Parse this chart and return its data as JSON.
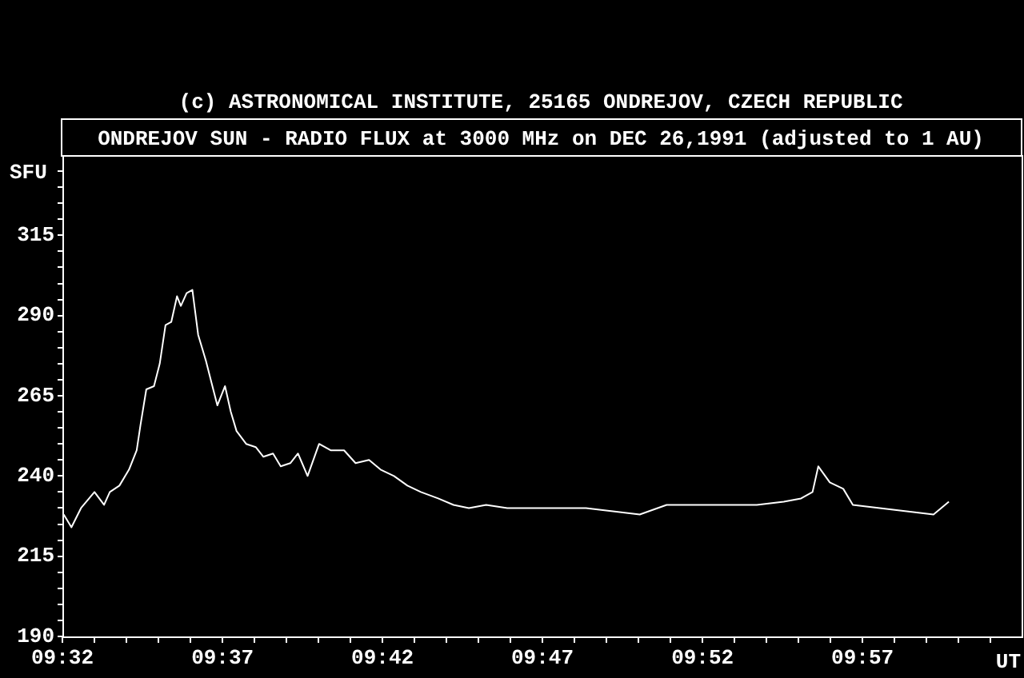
{
  "chart_data": {
    "type": "line",
    "title": "ONDREJOV SUN - RADIO FLUX at 3000 MHz on DEC 26,1991 (adjusted to 1 AU)",
    "subtitle": "(c) ASTRONOMICAL INSTITUTE, 25165 ONDREJOV, CZECH REPUBLIC",
    "xlabel": "UT",
    "ylabel": "SFU",
    "x": [
      9.534,
      9.538,
      9.543,
      9.55,
      9.555,
      9.558,
      9.563,
      9.568,
      9.572,
      9.574,
      9.577,
      9.581,
      9.584,
      9.587,
      9.59,
      9.593,
      9.595,
      9.598,
      9.601,
      9.604,
      9.608,
      9.611,
      9.614,
      9.618,
      9.621,
      9.624,
      9.629,
      9.634,
      9.638,
      9.643,
      9.647,
      9.652,
      9.656,
      9.661,
      9.667,
      9.673,
      9.68,
      9.686,
      9.693,
      9.699,
      9.706,
      9.713,
      9.72,
      9.729,
      9.737,
      9.745,
      9.754,
      9.765,
      9.779,
      9.806,
      9.834,
      9.848,
      9.873,
      9.895,
      9.909,
      9.918,
      9.924,
      9.927,
      9.933,
      9.94,
      9.945,
      9.959,
      9.973,
      9.987,
      9.995
    ],
    "series": [
      {
        "color": "#ffffff",
        "values": [
          228,
          224,
          230,
          235,
          231,
          235,
          237,
          242,
          248,
          256,
          267,
          268,
          275,
          287,
          288,
          296,
          293,
          297,
          298,
          284,
          276,
          269,
          262,
          268,
          260,
          254,
          250,
          249,
          246,
          247,
          243,
          244,
          247,
          240,
          250,
          248,
          248,
          244,
          245,
          242,
          240,
          237,
          235,
          233,
          231,
          230,
          231,
          230,
          230,
          230,
          228,
          231,
          231,
          231,
          232,
          233,
          235,
          243,
          238,
          236,
          231,
          230,
          229,
          228,
          232
        ]
      }
    ],
    "xlim": [
      9.5333,
      10.0333
    ],
    "ylim": [
      190,
      340
    ],
    "xticks": [
      {
        "value": 9.5333,
        "label": "09:32"
      },
      {
        "value": 9.55,
        "label": null
      },
      {
        "value": 9.5667,
        "label": null
      },
      {
        "value": 9.5833,
        "label": null
      },
      {
        "value": 9.6,
        "label": null
      },
      {
        "value": 9.6167,
        "label": "09:37"
      },
      {
        "value": 9.6333,
        "label": null
      },
      {
        "value": 9.65,
        "label": null
      },
      {
        "value": 9.6667,
        "label": null
      },
      {
        "value": 9.6833,
        "label": null
      },
      {
        "value": 9.7,
        "label": "09:42"
      },
      {
        "value": 9.7167,
        "label": null
      },
      {
        "value": 9.7333,
        "label": null
      },
      {
        "value": 9.75,
        "label": null
      },
      {
        "value": 9.7667,
        "label": null
      },
      {
        "value": 9.7833,
        "label": "09:47"
      },
      {
        "value": 9.8,
        "label": null
      },
      {
        "value": 9.8167,
        "label": null
      },
      {
        "value": 9.8333,
        "label": null
      },
      {
        "value": 9.85,
        "label": null
      },
      {
        "value": 9.8667,
        "label": "09:52"
      },
      {
        "value": 9.8833,
        "label": null
      },
      {
        "value": 9.9,
        "label": null
      },
      {
        "value": 9.9167,
        "label": null
      },
      {
        "value": 9.9333,
        "label": null
      },
      {
        "value": 9.95,
        "label": "09:57"
      },
      {
        "value": 9.9667,
        "label": null
      },
      {
        "value": 9.9833,
        "label": null
      },
      {
        "value": 10.0,
        "label": null
      },
      {
        "value": 10.0167,
        "label": null
      }
    ],
    "yticks": [
      190,
      {
        "value": 195,
        "label": null
      },
      {
        "value": 200,
        "label": null
      },
      {
        "value": 205,
        "label": null
      },
      {
        "value": 210,
        "label": null
      },
      215,
      {
        "value": 220,
        "label": null
      },
      {
        "value": 225,
        "label": null
      },
      {
        "value": 230,
        "label": null
      },
      {
        "value": 235,
        "label": null
      },
      240,
      {
        "value": 245,
        "label": null
      },
      {
        "value": 250,
        "label": null
      },
      {
        "value": 255,
        "label": null
      },
      {
        "value": 260,
        "label": null
      },
      265,
      {
        "value": 270,
        "label": null
      },
      {
        "value": 275,
        "label": null
      },
      {
        "value": 280,
        "label": null
      },
      {
        "value": 285,
        "label": null
      },
      290,
      {
        "value": 295,
        "label": null
      },
      {
        "value": 300,
        "label": null
      },
      {
        "value": 305,
        "label": null
      },
      {
        "value": 310,
        "label": null
      },
      315,
      {
        "value": 320,
        "label": null
      },
      {
        "value": 325,
        "label": null
      },
      {
        "value": 330,
        "label": null
      },
      {
        "value": 335,
        "label": null
      }
    ],
    "grid": false,
    "legend": false,
    "marker": "none",
    "line_style": "solid"
  }
}
